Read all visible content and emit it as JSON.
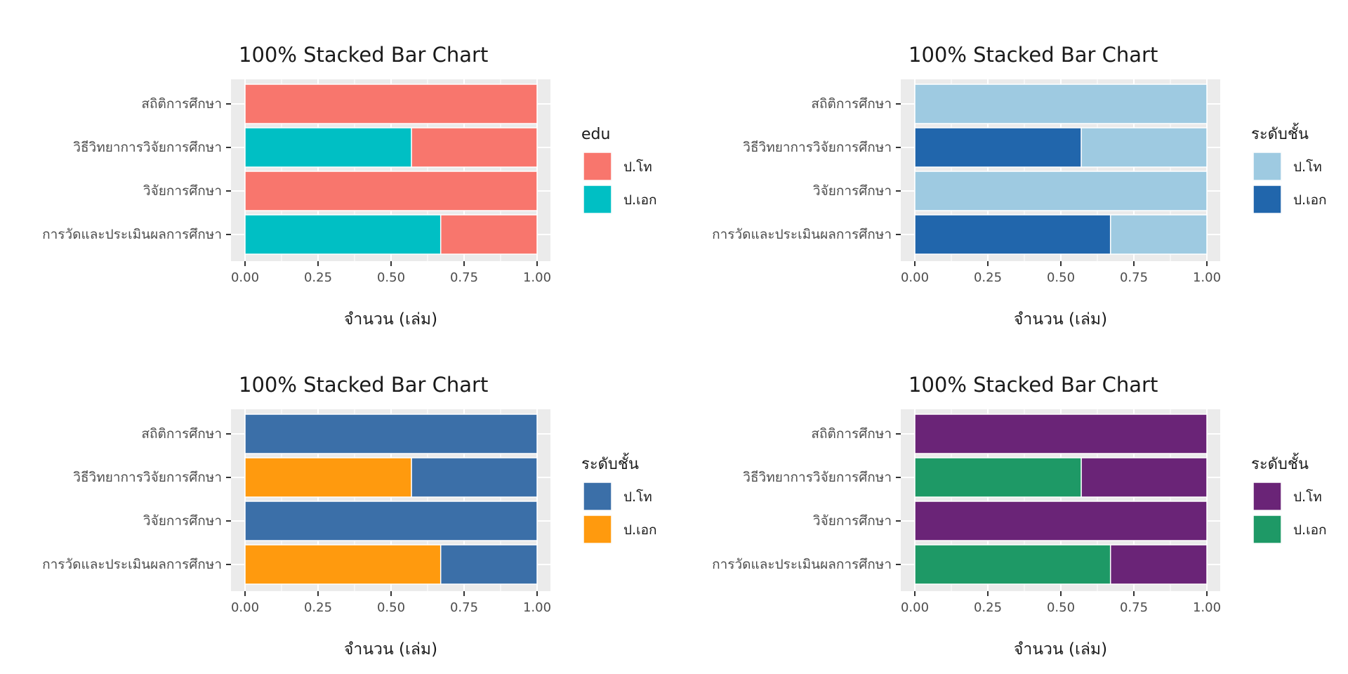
{
  "chart_data": [
    {
      "type": "bar",
      "orientation": "horizontal",
      "stacked": "percent",
      "title": "100% Stacked Bar Chart",
      "xlabel": "จำนวน (เล่ม)",
      "ylabel": "",
      "xlim": [
        0,
        1
      ],
      "xticks": [
        "0.00",
        "0.25",
        "0.50",
        "0.75",
        "1.00"
      ],
      "grid": true,
      "legend": {
        "title": "edu",
        "position": "right"
      },
      "categories": [
        "สถิติการศึกษา",
        "วิธีวิทยาการวิจัยการศึกษา",
        "วิจัยการศึกษา",
        "การวัดและประเมินผลการศึกษา"
      ],
      "series": [
        {
          "name": "ป.โท",
          "color": "#F8766D",
          "values": [
            1.0,
            0.43,
            1.0,
            0.33
          ]
        },
        {
          "name": "ป.เอก",
          "color": "#00BFC4",
          "values": [
            0.0,
            0.57,
            0.0,
            0.67
          ]
        }
      ]
    },
    {
      "type": "bar",
      "orientation": "horizontal",
      "stacked": "percent",
      "title": "100% Stacked Bar Chart",
      "xlabel": "จำนวน (เล่ม)",
      "ylabel": "",
      "xlim": [
        0,
        1
      ],
      "xticks": [
        "0.00",
        "0.25",
        "0.50",
        "0.75",
        "1.00"
      ],
      "grid": true,
      "legend": {
        "title": "ระดับชั้น",
        "position": "right"
      },
      "categories": [
        "สถิติการศึกษา",
        "วิธีวิทยาการวิจัยการศึกษา",
        "วิจัยการศึกษา",
        "การวัดและประเมินผลการศึกษา"
      ],
      "series": [
        {
          "name": "ป.โท",
          "color": "#9ECAE1",
          "values": [
            1.0,
            0.43,
            1.0,
            0.33
          ]
        },
        {
          "name": "ป.เอก",
          "color": "#2166AC",
          "values": [
            0.0,
            0.57,
            0.0,
            0.67
          ]
        }
      ]
    },
    {
      "type": "bar",
      "orientation": "horizontal",
      "stacked": "percent",
      "title": "100% Stacked Bar Chart",
      "xlabel": "จำนวน (เล่ม)",
      "ylabel": "",
      "xlim": [
        0,
        1
      ],
      "xticks": [
        "0.00",
        "0.25",
        "0.50",
        "0.75",
        "1.00"
      ],
      "grid": true,
      "legend": {
        "title": "ระดับชั้น",
        "position": "right"
      },
      "categories": [
        "สถิติการศึกษา",
        "วิธีวิทยาการวิจัยการศึกษา",
        "วิจัยการศึกษา",
        "การวัดและประเมินผลการศึกษา"
      ],
      "series": [
        {
          "name": "ป.โท",
          "color": "#3B6FA8",
          "values": [
            1.0,
            0.43,
            1.0,
            0.33
          ]
        },
        {
          "name": "ป.เอก",
          "color": "#FF9A0E",
          "values": [
            0.0,
            0.57,
            0.0,
            0.67
          ]
        }
      ]
    },
    {
      "type": "bar",
      "orientation": "horizontal",
      "stacked": "percent",
      "title": "100% Stacked Bar Chart",
      "xlabel": "จำนวน (เล่ม)",
      "ylabel": "",
      "xlim": [
        0,
        1
      ],
      "xticks": [
        "0.00",
        "0.25",
        "0.50",
        "0.75",
        "1.00"
      ],
      "grid": true,
      "legend": {
        "title": "ระดับชั้น",
        "position": "right"
      },
      "categories": [
        "สถิติการศึกษา",
        "วิธีวิทยาการวิจัยการศึกษา",
        "วิจัยการศึกษา",
        "การวัดและประเมินผลการศึกษา"
      ],
      "series": [
        {
          "name": "ป.โท",
          "color": "#6A2477",
          "values": [
            1.0,
            0.43,
            1.0,
            0.33
          ]
        },
        {
          "name": "ป.เอก",
          "color": "#1E9966",
          "values": [
            0.0,
            0.57,
            0.0,
            0.67
          ]
        }
      ]
    }
  ]
}
